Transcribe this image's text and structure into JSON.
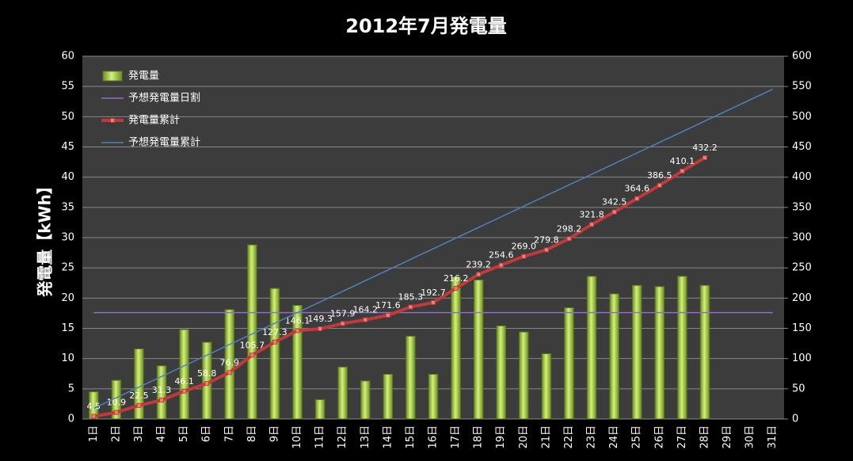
{
  "chart_data": {
    "type": "combo",
    "title": "2012年7月発電量",
    "y_label": "発電量【kWh】",
    "categories": [
      "1日",
      "2日",
      "3日",
      "4日",
      "5日",
      "6日",
      "7日",
      "8日",
      "9日",
      "10日",
      "11日",
      "12日",
      "13日",
      "14日",
      "15日",
      "16日",
      "17日",
      "18日",
      "19日",
      "20日",
      "21日",
      "22日",
      "23日",
      "24日",
      "25日",
      "26日",
      "27日",
      "28日",
      "29日",
      "30日",
      "31日"
    ],
    "ylim": [
      0,
      60
    ],
    "yticks": [
      0,
      5,
      10,
      15,
      20,
      25,
      30,
      35,
      40,
      45,
      50,
      55,
      60
    ],
    "y2lim": [
      0,
      600
    ],
    "y2ticks": [
      0,
      50,
      100,
      150,
      200,
      250,
      300,
      350,
      400,
      450,
      500,
      550,
      600
    ],
    "grid": true,
    "legend": "upper left",
    "series": [
      {
        "name": "発電量",
        "kind": "bar",
        "color": "#9acd32",
        "values": [
          4.5,
          6.4,
          11.6,
          8.8,
          14.8,
          12.7,
          18.1,
          28.8,
          21.6,
          18.8,
          3.2,
          8.6,
          6.3,
          7.4,
          13.7,
          7.4,
          23.5,
          23.0,
          15.4,
          14.4,
          10.8,
          18.4,
          23.6,
          20.7,
          22.1,
          21.9,
          23.6,
          22.1,
          null,
          null,
          null
        ]
      },
      {
        "name": "予想発電量日割",
        "kind": "line",
        "color": "#8e6fc0",
        "values": [
          17.6,
          17.6,
          17.6,
          17.6,
          17.6,
          17.6,
          17.6,
          17.6,
          17.6,
          17.6,
          17.6,
          17.6,
          17.6,
          17.6,
          17.6,
          17.6,
          17.6,
          17.6,
          17.6,
          17.6,
          17.6,
          17.6,
          17.6,
          17.6,
          17.6,
          17.6,
          17.6,
          17.6,
          17.6,
          17.6,
          17.6
        ]
      },
      {
        "name": "発電量累計",
        "kind": "line",
        "axis": "y2",
        "color": "#c0393b",
        "markers": true,
        "values": [
          4.5,
          10.9,
          22.5,
          31.3,
          46.1,
          58.8,
          76.9,
          105.7,
          127.3,
          146.1,
          149.3,
          157.9,
          164.2,
          171.6,
          185.3,
          192.7,
          216.2,
          239.2,
          254.6,
          269,
          279.8,
          298.2,
          321.8,
          342.5,
          364.6,
          386.5,
          410.1,
          432.2,
          null,
          null,
          null
        ],
        "value_labels": [
          "4.5",
          "10.9",
          "22.5",
          "31.3",
          "46.1",
          "58.8",
          "76.9",
          "105.7",
          "127.3",
          "146.1",
          "149.3",
          "157.9",
          "164.2",
          "171.6",
          "185.3",
          "192.7",
          "216.2",
          "239.2",
          "254.6",
          "269.0",
          "279.8",
          "298.2",
          "321.8",
          "342.5",
          "364.6",
          "386.5",
          "410.1",
          "432.2",
          null,
          null,
          null
        ]
      },
      {
        "name": "予想発電量累計",
        "kind": "line",
        "axis": "y2",
        "color": "#4f81bd",
        "values": [
          17.6,
          35.2,
          52.8,
          70.4,
          88,
          105.6,
          123.2,
          140.8,
          158.4,
          176,
          193.6,
          211.2,
          228.8,
          246.4,
          264,
          281.6,
          299.2,
          316.8,
          334.4,
          352,
          369.6,
          387.2,
          404.8,
          422.4,
          440,
          457.6,
          475.2,
          492.8,
          510.4,
          528,
          545.6
        ]
      }
    ]
  }
}
